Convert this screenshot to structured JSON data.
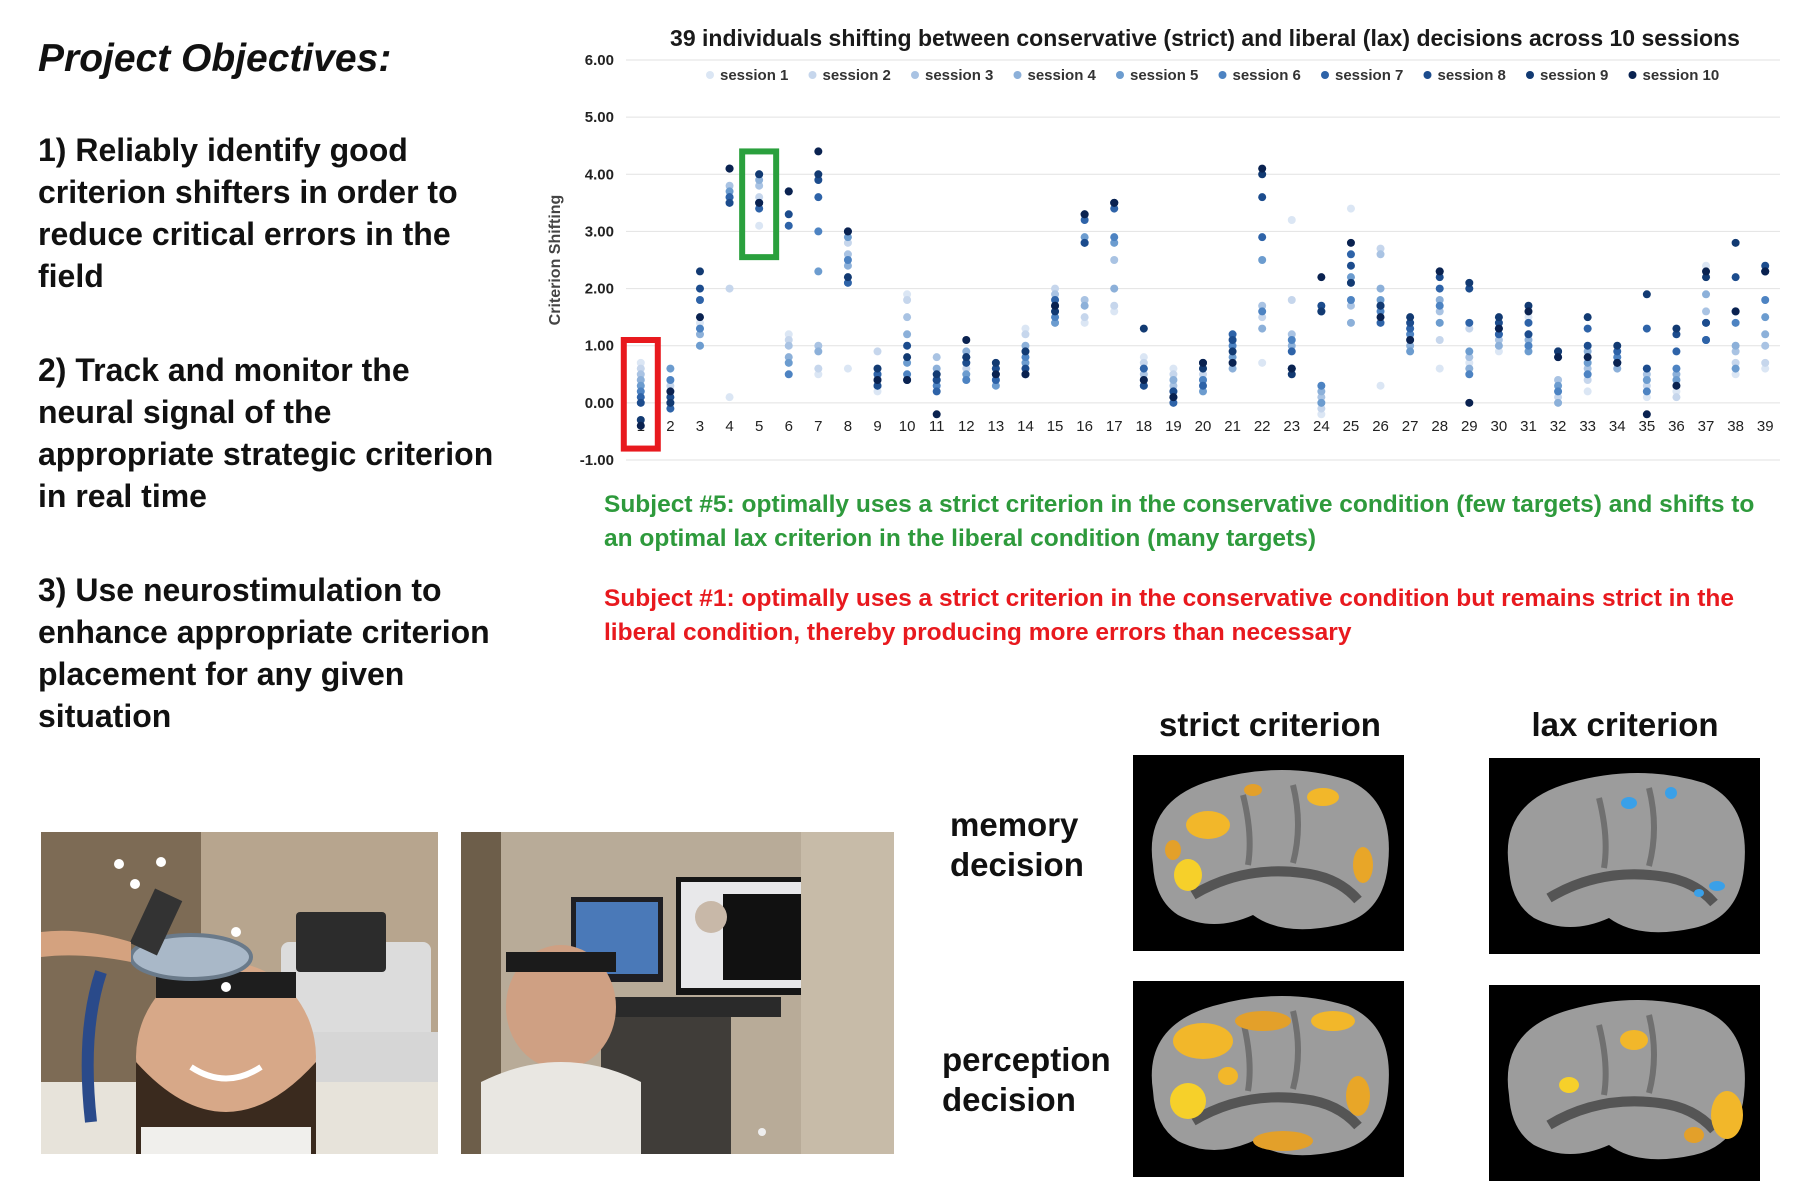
{
  "objectives": {
    "heading": "Project Objectives:",
    "items": [
      "1) Reliably identify good criterion shifters in order to reduce critical errors in the field",
      "2) Track and monitor the neural signal of the appropriate strategic criterion in real time",
      "3) Use neurostimulation to enhance appropriate criterion placement for any given situation"
    ]
  },
  "chart_data": {
    "type": "scatter",
    "title": "39 individuals shifting between conservative (strict) and liberal (lax) decisions across 10 sessions",
    "ylabel": "Criterion Shifting",
    "xlabel": "",
    "ylim": [
      -1,
      6
    ],
    "yticks": [
      "6.00",
      "5.00",
      "4.00",
      "3.00",
      "2.00",
      "1.00",
      "0.00",
      "-1.00"
    ],
    "grid": "horizontal",
    "legend_position": "top",
    "categories": [
      "1",
      "2",
      "3",
      "4",
      "5",
      "6",
      "7",
      "8",
      "9",
      "10",
      "11",
      "12",
      "13",
      "14",
      "15",
      "16",
      "17",
      "18",
      "19",
      "20",
      "21",
      "22",
      "23",
      "24",
      "25",
      "26",
      "27",
      "28",
      "29",
      "30",
      "31",
      "32",
      "33",
      "34",
      "35",
      "36",
      "37",
      "38",
      "39"
    ],
    "series": [
      {
        "name": "session 1",
        "color": "#dbe6f4",
        "values": [
          0.7,
          0.1,
          1.4,
          0.1,
          3.1,
          1.2,
          0.5,
          0.6,
          0.2,
          1.9,
          0.3,
          0.5,
          0.7,
          1.3,
          1.4,
          1.4,
          1.6,
          0.8,
          0.6,
          0.3,
          0.7,
          0.7,
          3.2,
          -0.2,
          3.4,
          0.3,
          1.2,
          0.6,
          0.7,
          0.9,
          1.5,
          0.2,
          0.2,
          0.6,
          0.1,
          0.2,
          2.4,
          0.5,
          0.6
        ]
      },
      {
        "name": "session 2",
        "color": "#c6d6ec",
        "values": [
          0.6,
          0.3,
          1.3,
          2.0,
          3.6,
          1.1,
          0.6,
          2.8,
          0.9,
          1.8,
          0.5,
          0.6,
          0.4,
          1.2,
          2.0,
          1.5,
          1.7,
          0.7,
          0.5,
          0.5,
          1.0,
          1.5,
          1.8,
          -0.1,
          2.1,
          2.7,
          1.3,
          1.1,
          1.3,
          1.3,
          1.2,
          0.1,
          0.4,
          0.7,
          0.3,
          0.1,
          2.3,
          0.7,
          0.7
        ]
      },
      {
        "name": "session 3",
        "color": "#a9c3e3",
        "values": [
          0.5,
          0.2,
          1.0,
          3.8,
          3.8,
          1.0,
          1.0,
          2.6,
          0.6,
          1.5,
          0.8,
          0.7,
          0.5,
          0.9,
          1.9,
          1.8,
          2.5,
          0.5,
          0.3,
          0.4,
          1.1,
          1.7,
          1.2,
          0.1,
          1.7,
          2.6,
          1.1,
          1.6,
          0.8,
          1.1,
          1.0,
          0.4,
          0.6,
          0.8,
          0.5,
          0.3,
          1.6,
          0.9,
          1.0
        ]
      },
      {
        "name": "session 4",
        "color": "#8cb0d9",
        "values": [
          0.4,
          0.0,
          1.2,
          3.5,
          3.9,
          0.8,
          0.9,
          2.4,
          0.4,
          1.2,
          0.6,
          0.9,
          0.6,
          1.0,
          1.6,
          1.7,
          2.0,
          0.6,
          0.4,
          0.6,
          0.6,
          1.3,
          1.0,
          0.2,
          1.4,
          2.0,
          1.0,
          1.8,
          0.6,
          1.0,
          1.1,
          0.0,
          0.9,
          0.6,
          0.6,
          0.5,
          1.9,
          1.0,
          1.2
        ]
      },
      {
        "name": "session 5",
        "color": "#6c9ccf",
        "values": [
          0.3,
          0.6,
          1.0,
          3.7,
          3.5,
          0.7,
          2.3,
          2.9,
          0.5,
          0.7,
          0.4,
          0.5,
          0.3,
          0.7,
          1.4,
          2.9,
          2.8,
          0.4,
          0.2,
          0.2,
          0.8,
          2.5,
          0.6,
          0.0,
          2.2,
          1.8,
          0.9,
          1.4,
          0.9,
          1.2,
          0.9,
          0.3,
          0.7,
          0.7,
          0.4,
          0.4,
          1.4,
          0.6,
          1.5
        ]
      },
      {
        "name": "session 6",
        "color": "#4d83c2",
        "values": [
          0.2,
          0.4,
          1.3,
          3.6,
          4.0,
          0.5,
          3.0,
          2.5,
          0.3,
          0.5,
          0.3,
          0.4,
          0.5,
          0.8,
          1.5,
          2.8,
          2.9,
          0.3,
          0.1,
          0.4,
          1.0,
          1.6,
          1.1,
          0.3,
          1.8,
          1.6,
          1.2,
          1.7,
          0.5,
          1.3,
          1.0,
          0.2,
          0.5,
          0.8,
          0.2,
          0.6,
          1.1,
          1.4,
          1.8
        ]
      },
      {
        "name": "session 7",
        "color": "#2e63a8",
        "values": [
          0.1,
          -0.1,
          1.8,
          3.6,
          3.4,
          3.1,
          3.6,
          2.1,
          0.5,
          0.4,
          0.2,
          0.8,
          0.4,
          0.5,
          1.8,
          3.2,
          3.4,
          0.6,
          0.0,
          0.3,
          1.2,
          2.9,
          0.9,
          1.6,
          2.6,
          1.4,
          1.3,
          2.0,
          1.4,
          1.2,
          1.4,
          0.8,
          1.3,
          0.9,
          1.3,
          0.9,
          1.1,
          1.6,
          2.3
        ]
      },
      {
        "name": "session 8",
        "color": "#1c4c8d",
        "values": [
          0.0,
          0.1,
          2.0,
          3.5,
          3.5,
          3.3,
          3.9,
          3.0,
          0.3,
          1.0,
          0.4,
          0.7,
          0.6,
          0.6,
          1.7,
          2.8,
          3.5,
          0.3,
          0.2,
          0.7,
          1.1,
          3.6,
          0.6,
          1.7,
          2.4,
          1.7,
          1.4,
          2.2,
          2.0,
          1.4,
          1.2,
          0.9,
          1.0,
          0.7,
          0.6,
          1.2,
          1.4,
          2.2,
          2.4
        ]
      },
      {
        "name": "session 9",
        "color": "#123a72",
        "values": [
          -0.3,
          0.0,
          2.3,
          4.1,
          4.0,
          3.7,
          4.0,
          2.2,
          0.6,
          0.8,
          0.5,
          0.8,
          0.7,
          0.9,
          1.6,
          3.3,
          3.5,
          1.3,
          0.1,
          0.6,
          0.9,
          4.0,
          0.5,
          1.6,
          2.1,
          1.7,
          1.5,
          2.3,
          2.1,
          1.5,
          1.7,
          0.9,
          1.5,
          1.0,
          1.9,
          1.3,
          2.2,
          2.8,
          2.3
        ]
      },
      {
        "name": "session 10",
        "color": "#0a2250",
        "values": [
          -0.4,
          0.2,
          1.5,
          4.1,
          3.5,
          3.7,
          4.4,
          3.0,
          0.4,
          0.4,
          -0.2,
          1.1,
          0.5,
          0.5,
          1.7,
          3.3,
          3.5,
          0.4,
          0.1,
          0.7,
          0.7,
          4.1,
          0.6,
          2.2,
          2.8,
          1.5,
          1.1,
          2.3,
          0.0,
          1.3,
          1.6,
          0.8,
          0.8,
          0.7,
          -0.2,
          0.3,
          2.3,
          1.6,
          2.3
        ]
      }
    ],
    "highlights": [
      {
        "category": "5",
        "color": "#2aa03d",
        "ymin": 2.55,
        "ymax": 4.4
      },
      {
        "category": "1",
        "color": "#e8191e",
        "ymin": -0.8,
        "ymax": 1.1
      }
    ]
  },
  "notes": {
    "green": "Subject #5: optimally uses a strict criterion in the conservative condition (few targets) and shifts to an optimal lax criterion in the liberal condition (many targets)",
    "red": "Subject #1: optimally uses a strict criterion in the conservative condition but remains strict in the liberal condition, thereby producing more errors than necessary"
  },
  "brain_panel": {
    "col_headers": [
      "strict criterion",
      "lax criterion"
    ],
    "row_labels": [
      "memory decision",
      "perception decision"
    ]
  },
  "colors": {
    "green_note": "#2e9a3c",
    "red_note": "#e8191e"
  }
}
